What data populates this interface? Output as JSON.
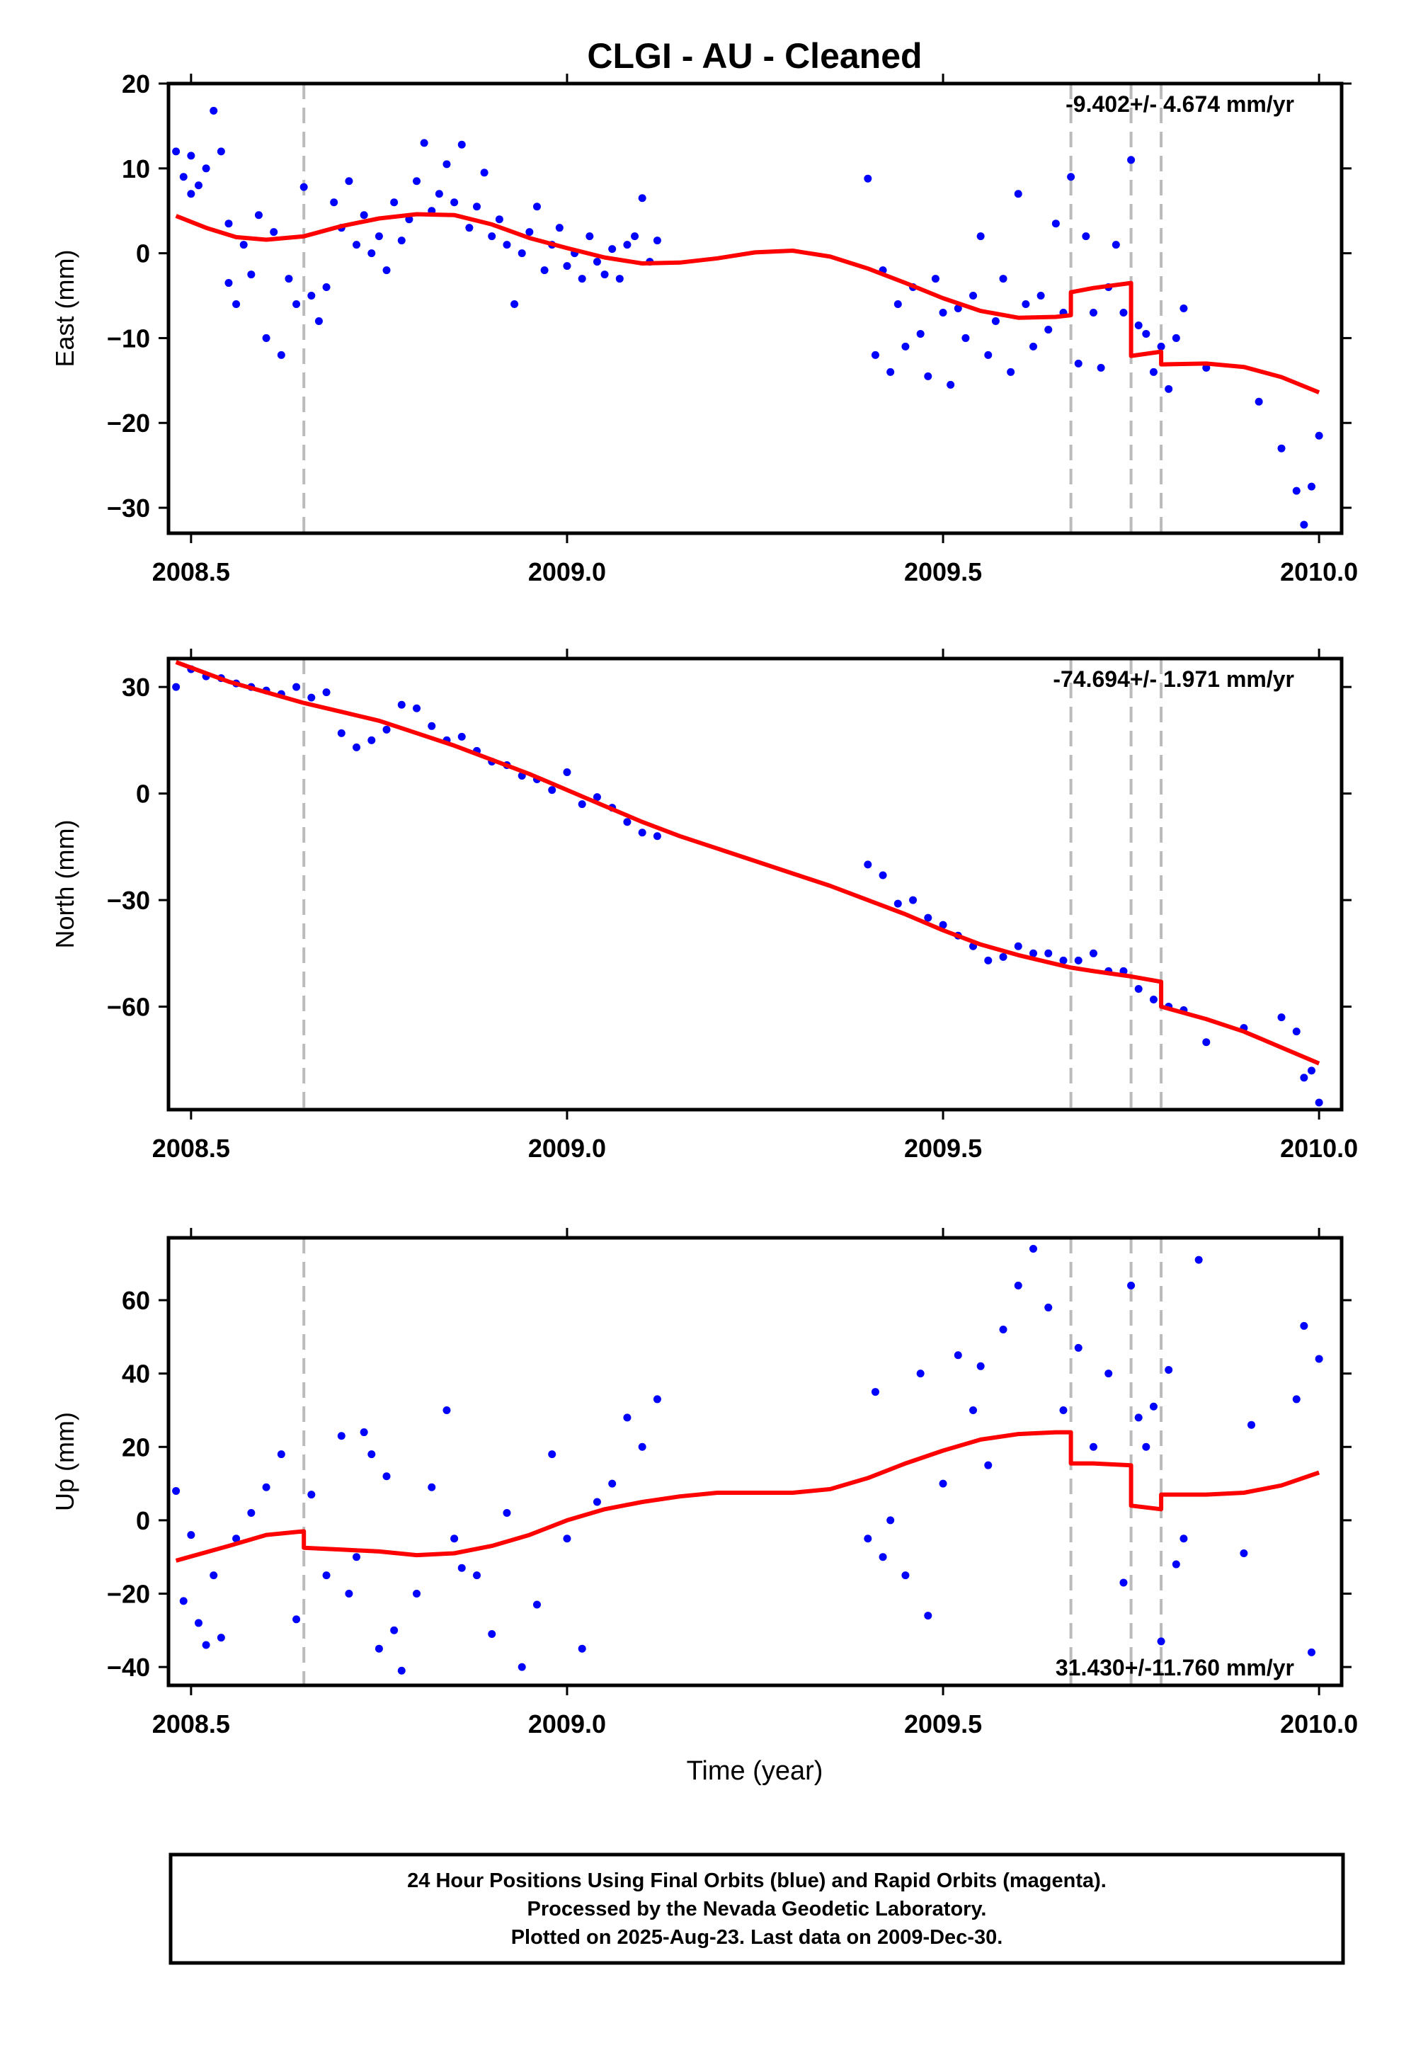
{
  "title": "CLGI  - AU - Cleaned",
  "xlabel": "Time (year)",
  "footer": [
    "24 Hour Positions Using Final Orbits (blue) and Rapid Orbits (magenta).",
    "Processed by the Nevada Geodetic Laboratory.",
    "Plotted on 2025-Aug-23. Last data on 2009-Dec-30."
  ],
  "colors": {
    "points": "#0000ff",
    "model": "#ff0000",
    "events": "#bbbbbb",
    "frame": "#000000"
  },
  "chart_data": [
    {
      "type": "scatter",
      "ylabel": "East (mm)",
      "rate_label": "-9.402+/- 4.674 mm/yr",
      "rate_position": "top-right",
      "xlim": [
        2008.47,
        2010.03
      ],
      "ylim": [
        -33,
        20
      ],
      "x_ticks": [
        "2008.5",
        "2009.0",
        "2009.5",
        "2010.0"
      ],
      "y_ticks": [
        20,
        10,
        0,
        -10,
        -20,
        -30
      ],
      "event_lines": [
        2008.65,
        2009.67,
        2009.75,
        2009.79
      ],
      "model": {
        "x": [
          2008.48,
          2008.52,
          2008.56,
          2008.6,
          2008.65,
          2008.7,
          2008.75,
          2008.8,
          2008.85,
          2008.9,
          2008.95,
          2009.0,
          2009.05,
          2009.1,
          2009.15,
          2009.2,
          2009.25,
          2009.3,
          2009.35,
          2009.4,
          2009.45,
          2009.5,
          2009.55,
          2009.6,
          2009.65,
          2009.67,
          2009.67,
          2009.7,
          2009.75,
          2009.75,
          2009.79,
          2009.79,
          2009.85,
          2009.9,
          2009.95,
          2010.0
        ],
        "y": [
          4.4,
          3.0,
          1.9,
          1.6,
          2.0,
          3.2,
          4.1,
          4.6,
          4.5,
          3.4,
          1.8,
          0.6,
          -0.5,
          -1.2,
          -1.1,
          -0.6,
          0.1,
          0.3,
          -0.4,
          -1.8,
          -3.5,
          -5.3,
          -6.8,
          -7.6,
          -7.5,
          -7.3,
          -4.6,
          -4.1,
          -3.5,
          -12.1,
          -11.6,
          -13.1,
          -13.0,
          -13.4,
          -14.6,
          -16.4
        ]
      },
      "points": {
        "x": [
          2008.48,
          2008.49,
          2008.5,
          2008.5,
          2008.51,
          2008.52,
          2008.53,
          2008.54,
          2008.55,
          2008.55,
          2008.56,
          2008.57,
          2008.58,
          2008.59,
          2008.6,
          2008.61,
          2008.62,
          2008.63,
          2008.64,
          2008.65,
          2008.66,
          2008.67,
          2008.68,
          2008.69,
          2008.7,
          2008.71,
          2008.72,
          2008.73,
          2008.74,
          2008.75,
          2008.76,
          2008.77,
          2008.78,
          2008.79,
          2008.8,
          2008.81,
          2008.82,
          2008.83,
          2008.84,
          2008.85,
          2008.86,
          2008.87,
          2008.88,
          2008.89,
          2008.9,
          2008.91,
          2008.92,
          2008.93,
          2008.94,
          2008.95,
          2008.96,
          2008.97,
          2008.98,
          2008.99,
          2009.0,
          2009.01,
          2009.02,
          2009.03,
          2009.04,
          2009.05,
          2009.06,
          2009.07,
          2009.08,
          2009.09,
          2009.1,
          2009.11,
          2009.12,
          2009.4,
          2009.41,
          2009.42,
          2009.43,
          2009.44,
          2009.45,
          2009.46,
          2009.47,
          2009.48,
          2009.49,
          2009.5,
          2009.51,
          2009.52,
          2009.53,
          2009.54,
          2009.55,
          2009.56,
          2009.57,
          2009.58,
          2009.59,
          2009.6,
          2009.61,
          2009.62,
          2009.63,
          2009.64,
          2009.65,
          2009.66,
          2009.67,
          2009.68,
          2009.69,
          2009.7,
          2009.71,
          2009.72,
          2009.73,
          2009.74,
          2009.75,
          2009.76,
          2009.77,
          2009.78,
          2009.79,
          2009.8,
          2009.81,
          2009.82,
          2009.85,
          2009.92,
          2009.95,
          2009.97,
          2009.98,
          2009.99,
          2010.0
        ],
        "y": [
          12.0,
          9.0,
          7.0,
          11.5,
          8.0,
          10.0,
          16.8,
          12.0,
          -3.5,
          3.5,
          -6.0,
          1.0,
          -2.5,
          4.5,
          -10.0,
          2.5,
          -12.0,
          -3.0,
          -6.0,
          7.8,
          -5.0,
          -8.0,
          -4.0,
          6.0,
          3.0,
          8.5,
          1.0,
          4.5,
          0.0,
          2.0,
          -2.0,
          6.0,
          1.5,
          4.0,
          8.5,
          13.0,
          5.0,
          7.0,
          10.5,
          6.0,
          12.8,
          3.0,
          5.5,
          9.5,
          2.0,
          4.0,
          1.0,
          -6.0,
          0.0,
          2.5,
          5.5,
          -2.0,
          1.0,
          3.0,
          -1.5,
          0.0,
          -3.0,
          2.0,
          -1.0,
          -2.5,
          0.5,
          -3.0,
          1.0,
          2.0,
          6.5,
          -1.0,
          1.5,
          8.8,
          -12.0,
          -2.0,
          -14.0,
          -6.0,
          -11.0,
          -4.0,
          -9.5,
          -14.5,
          -3.0,
          -7.0,
          -15.5,
          -6.5,
          -10.0,
          -5.0,
          2.0,
          -12.0,
          -8.0,
          -3.0,
          -14.0,
          7.0,
          -6.0,
          -11.0,
          -5.0,
          -9.0,
          3.5,
          -7.0,
          9.0,
          -13.0,
          2.0,
          -7.0,
          -13.5,
          -4.0,
          1.0,
          -7.0,
          11.0,
          -8.5,
          -9.5,
          -14.0,
          -11.0,
          -16.0,
          -10.0,
          -6.5,
          -13.5,
          -17.5,
          -23.0,
          -28.0,
          -32.0,
          -27.5,
          -21.5
        ]
      }
    },
    {
      "type": "scatter",
      "ylabel": "North (mm)",
      "rate_label": "-74.694+/- 1.971 mm/yr",
      "rate_position": "top-right",
      "xlim": [
        2008.47,
        2010.03
      ],
      "ylim": [
        -89,
        38
      ],
      "x_ticks": [
        "2008.5",
        "2009.0",
        "2009.5",
        "2010.0"
      ],
      "y_ticks": [
        30,
        0,
        -30,
        -60
      ],
      "event_lines": [
        2008.65,
        2009.67,
        2009.75,
        2009.79
      ],
      "model": {
        "x": [
          2008.48,
          2008.55,
          2008.6,
          2008.65,
          2008.7,
          2008.75,
          2008.8,
          2008.85,
          2008.9,
          2008.95,
          2009.0,
          2009.05,
          2009.1,
          2009.15,
          2009.2,
          2009.25,
          2009.3,
          2009.35,
          2009.4,
          2009.45,
          2009.5,
          2009.55,
          2009.6,
          2009.65,
          2009.67,
          2009.7,
          2009.75,
          2009.79,
          2009.79,
          2009.85,
          2009.9,
          2009.95,
          2010.0
        ],
        "y": [
          37.0,
          31.5,
          28.5,
          25.5,
          23.0,
          20.5,
          17.0,
          13.5,
          9.5,
          5.5,
          1.0,
          -3.5,
          -8.0,
          -12.0,
          -15.5,
          -19.0,
          -22.5,
          -26.0,
          -30.0,
          -34.0,
          -38.5,
          -42.5,
          -45.5,
          -48.0,
          -49.0,
          -50.0,
          -51.5,
          -53.0,
          -60.0,
          -63.5,
          -67.0,
          -71.5,
          -76.0
        ]
      },
      "points": {
        "x": [
          2008.48,
          2008.5,
          2008.52,
          2008.54,
          2008.56,
          2008.58,
          2008.6,
          2008.62,
          2008.64,
          2008.66,
          2008.68,
          2008.7,
          2008.72,
          2008.74,
          2008.76,
          2008.78,
          2008.8,
          2008.82,
          2008.84,
          2008.86,
          2008.88,
          2008.9,
          2008.92,
          2008.94,
          2008.96,
          2008.98,
          2009.0,
          2009.02,
          2009.04,
          2009.06,
          2009.08,
          2009.1,
          2009.12,
          2009.4,
          2009.42,
          2009.44,
          2009.46,
          2009.48,
          2009.5,
          2009.52,
          2009.54,
          2009.56,
          2009.58,
          2009.6,
          2009.62,
          2009.64,
          2009.66,
          2009.68,
          2009.7,
          2009.72,
          2009.74,
          2009.76,
          2009.78,
          2009.8,
          2009.82,
          2009.85,
          2009.9,
          2009.95,
          2009.97,
          2009.98,
          2009.99,
          2010.0
        ],
        "y": [
          30.0,
          35.0,
          33.0,
          32.5,
          31.0,
          30.0,
          29.0,
          28.0,
          30.0,
          27.0,
          28.5,
          17.0,
          13.0,
          15.0,
          18.0,
          25.0,
          24.0,
          19.0,
          15.0,
          16.0,
          12.0,
          9.0,
          8.0,
          5.0,
          4.0,
          1.0,
          6.0,
          -3.0,
          -1.0,
          -4.0,
          -8.0,
          -11.0,
          -12.0,
          -20.0,
          -23.0,
          -31.0,
          -30.0,
          -35.0,
          -37.0,
          -40.0,
          -43.0,
          -47.0,
          -46.0,
          -43.0,
          -45.0,
          -45.0,
          -47.0,
          -47.0,
          -45.0,
          -50.0,
          -50.0,
          -55.0,
          -58.0,
          -60.0,
          -61.0,
          -70.0,
          -66.0,
          -63.0,
          -67.0,
          -80.0,
          -78.0,
          -87.0
        ]
      }
    },
    {
      "type": "scatter",
      "ylabel": "Up (mm)",
      "rate_label": "31.430+/-11.760 mm/yr",
      "rate_position": "bottom-right",
      "xlim": [
        2008.47,
        2010.03
      ],
      "ylim": [
        -45,
        77
      ],
      "x_ticks": [
        "2008.5",
        "2009.0",
        "2009.5",
        "2010.0"
      ],
      "y_ticks": [
        60,
        40,
        20,
        0,
        -20,
        -40
      ],
      "event_lines": [
        2008.65,
        2009.67,
        2009.75,
        2009.79
      ],
      "model": {
        "x": [
          2008.48,
          2008.55,
          2008.6,
          2008.65,
          2008.65,
          2008.7,
          2008.75,
          2008.8,
          2008.85,
          2008.9,
          2008.95,
          2009.0,
          2009.05,
          2009.1,
          2009.15,
          2009.2,
          2009.25,
          2009.3,
          2009.35,
          2009.4,
          2009.45,
          2009.5,
          2009.55,
          2009.6,
          2009.65,
          2009.67,
          2009.67,
          2009.7,
          2009.75,
          2009.75,
          2009.79,
          2009.79,
          2009.85,
          2009.9,
          2009.95,
          2010.0
        ],
        "y": [
          -11.0,
          -7.0,
          -4.0,
          -3.0,
          -7.5,
          -8.0,
          -8.5,
          -9.5,
          -9.0,
          -7.0,
          -4.0,
          0.0,
          3.0,
          5.0,
          6.5,
          7.5,
          7.5,
          7.5,
          8.5,
          11.5,
          15.5,
          19.0,
          22.0,
          23.5,
          24.0,
          24.0,
          15.5,
          15.5,
          15.0,
          4.0,
          3.0,
          7.0,
          7.0,
          7.5,
          9.5,
          13.0
        ]
      },
      "points": {
        "x": [
          2008.48,
          2008.49,
          2008.5,
          2008.51,
          2008.52,
          2008.53,
          2008.54,
          2008.56,
          2008.58,
          2008.6,
          2008.62,
          2008.64,
          2008.66,
          2008.68,
          2008.7,
          2008.71,
          2008.72,
          2008.73,
          2008.74,
          2008.75,
          2008.76,
          2008.77,
          2008.78,
          2008.8,
          2008.82,
          2008.84,
          2008.85,
          2008.86,
          2008.88,
          2008.9,
          2008.92,
          2008.94,
          2008.96,
          2008.98,
          2009.0,
          2009.02,
          2009.04,
          2009.06,
          2009.08,
          2009.1,
          2009.12,
          2009.4,
          2009.41,
          2009.42,
          2009.43,
          2009.45,
          2009.47,
          2009.48,
          2009.5,
          2009.52,
          2009.54,
          2009.55,
          2009.56,
          2009.58,
          2009.6,
          2009.62,
          2009.64,
          2009.66,
          2009.68,
          2009.7,
          2009.72,
          2009.74,
          2009.75,
          2009.76,
          2009.77,
          2009.78,
          2009.79,
          2009.8,
          2009.81,
          2009.82,
          2009.84,
          2009.9,
          2009.91,
          2009.97,
          2009.98,
          2009.99,
          2010.0
        ],
        "y": [
          8.0,
          -22.0,
          -4.0,
          -28.0,
          -34.0,
          -15.0,
          -32.0,
          -5.0,
          2.0,
          9.0,
          18.0,
          -27.0,
          7.0,
          -15.0,
          23.0,
          -20.0,
          -10.0,
          24.0,
          18.0,
          -35.0,
          12.0,
          -30.0,
          -41.0,
          -20.0,
          9.0,
          30.0,
          -5.0,
          -13.0,
          -15.0,
          -31.0,
          2.0,
          -40.0,
          -23.0,
          18.0,
          -5.0,
          -35.0,
          5.0,
          10.0,
          28.0,
          20.0,
          33.0,
          -5.0,
          35.0,
          -10.0,
          0.0,
          -15.0,
          40.0,
          -26.0,
          10.0,
          45.0,
          30.0,
          42.0,
          15.0,
          52.0,
          64.0,
          74.0,
          58.0,
          30.0,
          47.0,
          20.0,
          40.0,
          -17.0,
          64.0,
          28.0,
          20.0,
          31.0,
          -33.0,
          41.0,
          -12.0,
          -5.0,
          71.0,
          -9.0,
          26.0,
          33.0,
          53.0,
          -36.0,
          44.0
        ]
      }
    }
  ]
}
